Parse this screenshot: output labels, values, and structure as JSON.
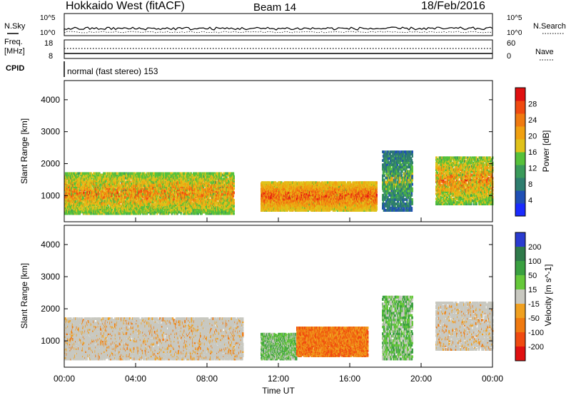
{
  "header": {
    "station": "Hokkaido West (fitACF)",
    "beam": "Beam 14",
    "date": "18/Feb/2016"
  },
  "noise_panel": {
    "left_label": "N.Sky",
    "right_label": "N.Search",
    "tick_top": "10^5",
    "tick_bottom": "10^0"
  },
  "freq_panel": {
    "left_label_line1": "Freq.",
    "left_label_line2": "[MHz]",
    "left_tick_top": "18",
    "left_tick_bottom": "8",
    "right_label": "Nave",
    "right_tick_top": "60",
    "right_tick_bottom": "0"
  },
  "cpid_panel": {
    "label": "CPID",
    "text": "normal (fast stereo) 153"
  },
  "colors": {
    "power_scale": [
      "#1a2bff",
      "#1f4fb5",
      "#2e7d6e",
      "#3a9a5a",
      "#56c13a",
      "#e0c21a",
      "#f0a010",
      "#f07a10",
      "#f04a10",
      "#e01010"
    ],
    "velocity_scale": [
      "#2a3bd0",
      "#2f7a4a",
      "#3aa040",
      "#66c83a",
      "#c8c8c0",
      "#f0a020",
      "#f07a10",
      "#f04a10",
      "#e01010"
    ],
    "velocity_grey": "#c8c8c0"
  },
  "chart_data": [
    {
      "type": "heatmap",
      "title": "Power",
      "ylabel": "Slant Range [km]",
      "xlabel": "Time UT",
      "x_ticks": [
        "00:00",
        "04:00",
        "08:00",
        "12:00",
        "16:00",
        "20:00",
        "00:00"
      ],
      "y_ticks": [
        "1000",
        "2000",
        "3000",
        "4000"
      ],
      "ylim": [
        180,
        4600
      ],
      "xlim_hours": [
        0,
        24
      ],
      "colorbar_label": "Power [dB]",
      "colorbar_ticks": [
        "4",
        "8",
        "12",
        "16",
        "20",
        "24",
        "28"
      ],
      "colorbar_range": [
        0,
        32
      ],
      "regions": [
        {
          "t0": 0.0,
          "t1": 9.5,
          "r0": 400,
          "r1": 1700,
          "level": "mid"
        },
        {
          "t0": 11.0,
          "t1": 17.5,
          "r0": 500,
          "r1": 1400,
          "level": "high"
        },
        {
          "t0": 17.8,
          "t1": 19.5,
          "r0": 500,
          "r1": 2400,
          "level": "low"
        },
        {
          "t0": 20.8,
          "t1": 24.0,
          "r0": 700,
          "r1": 2200,
          "level": "mid"
        }
      ]
    },
    {
      "type": "heatmap",
      "title": "Velocity",
      "ylabel": "Slant Range [km]",
      "xlabel": "Time UT",
      "x_ticks": [
        "00:00",
        "04:00",
        "08:00",
        "12:00",
        "16:00",
        "20:00",
        "00:00"
      ],
      "y_ticks": [
        "1000",
        "2000",
        "3000",
        "4000"
      ],
      "ylim": [
        180,
        4600
      ],
      "xlim_hours": [
        0,
        24
      ],
      "colorbar_label": "Velocity [m s^-1]",
      "colorbar_ticks": [
        "200",
        "100",
        "50",
        "15",
        "-15",
        "-50",
        "-100",
        "-200"
      ],
      "regions": [
        {
          "t0": 0.0,
          "t1": 10.0,
          "r0": 400,
          "r1": 1700,
          "class": "ground"
        },
        {
          "t0": 11.0,
          "t1": 13.0,
          "r0": 400,
          "r1": 1200,
          "class": "positive"
        },
        {
          "t0": 13.0,
          "t1": 17.0,
          "r0": 500,
          "r1": 1400,
          "class": "negative"
        },
        {
          "t0": 17.8,
          "t1": 19.5,
          "r0": 400,
          "r1": 2400,
          "class": "positive"
        },
        {
          "t0": 20.8,
          "t1": 24.0,
          "r0": 700,
          "r1": 2200,
          "class": "ground"
        }
      ]
    }
  ]
}
